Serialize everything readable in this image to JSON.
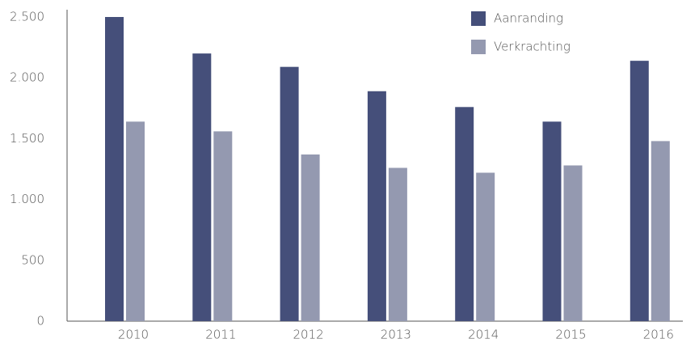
{
  "chart_data": {
    "type": "bar",
    "categories": [
      "2010",
      "2011",
      "2012",
      "2013",
      "2014",
      "2015",
      "2016"
    ],
    "series": [
      {
        "name": "Aanranding",
        "color": "#454f7a",
        "values": [
          2500,
          2200,
          2090,
          1890,
          1760,
          1640,
          2140
        ]
      },
      {
        "name": "Verkrachting",
        "color": "#9499b0",
        "values": [
          1640,
          1560,
          1370,
          1260,
          1220,
          1280,
          1480
        ]
      }
    ],
    "ylim": [
      0,
      2500
    ],
    "yticks": [
      0,
      500,
      {
        "value": 1000,
        "label": "1.000"
      },
      {
        "value": 1500,
        "label": "1.500"
      },
      {
        "value": 2000,
        "label": "2.000"
      },
      {
        "value": 2500,
        "label": "2.500"
      }
    ],
    "grid": false,
    "legend": "top-right"
  }
}
